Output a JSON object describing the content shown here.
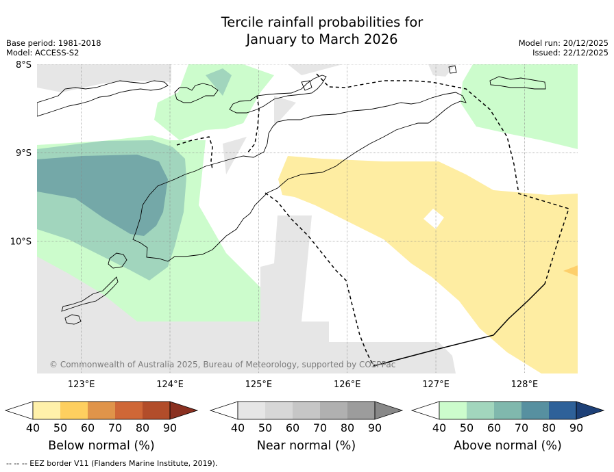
{
  "title_line1": "Tercile rainfall probabilities for",
  "title_line2": "January to March 2026",
  "base_period": "Base period: 1981-2018",
  "model": "Model: ACCESS-S2",
  "model_run": "Model run: 20/12/2025",
  "issued": "Issued: 22/12/2025",
  "copyright": "© Commonwealth of Australia 2025, Bureau of Meteorology, supported by COSPPac",
  "footnote": "--  --  -- EEZ border V11 (Flanders Marine Institute, 2019).",
  "colors": {
    "land_outline": "#000000",
    "grey": "#e6e6e6",
    "green_light": "#ccfccc",
    "green_mid": "#a1d5bd",
    "teal": "#74a8a8",
    "yellow": "#feeda2",
    "orange": "#fdcf6b",
    "gridline": "#888888"
  },
  "chart_data": {
    "type": "map",
    "title": "Tercile rainfall probabilities for January to March 2026",
    "lon_range": [
      122.5,
      128.6
    ],
    "lat_range": [
      -11.5,
      -8.0
    ],
    "x_ticks": [
      {
        "value": 123,
        "label": "123°E"
      },
      {
        "value": 124,
        "label": "124°E"
      },
      {
        "value": 125,
        "label": "125°E"
      },
      {
        "value": 126,
        "label": "126°E"
      },
      {
        "value": 127,
        "label": "127°E"
      },
      {
        "value": 128,
        "label": "128°E"
      }
    ],
    "y_ticks": [
      {
        "value": -8,
        "label": "8°S"
      },
      {
        "value": -9,
        "label": "9°S"
      },
      {
        "value": -10,
        "label": "10°S"
      }
    ],
    "regions": [
      {
        "category": "Near normal",
        "range": "40-50",
        "description": "grey areas in western and southern seas"
      },
      {
        "category": "Above normal",
        "range": "40-50",
        "description": "light green over western Timor, Flores Sea east, Savu Sea"
      },
      {
        "category": "Above normal",
        "range": "50-60",
        "description": "west Timor coast and Savu Sea"
      },
      {
        "category": "Above normal",
        "range": "60-70",
        "description": "Savu Sea around 122.5-124°E, 9-10°S"
      },
      {
        "category": "Below normal",
        "range": "40-50",
        "description": "Timor Sea south-east of Timor"
      },
      {
        "category": "Below normal",
        "range": "50-60",
        "description": "small area near 128.5°E, 10.3°S"
      }
    ],
    "colorbars": [
      {
        "title": "Below normal (%)",
        "ticks": [
          "40",
          "50",
          "60",
          "70",
          "80",
          "90"
        ],
        "colors": [
          "#fff1aa",
          "#fecf5f",
          "#e0944a",
          "#cf6737",
          "#b24d2a",
          "#8a3020"
        ]
      },
      {
        "title": "Near normal (%)",
        "ticks": [
          "40",
          "50",
          "60",
          "70",
          "80",
          "90"
        ],
        "colors": [
          "#e6e6e6",
          "#d7d7d7",
          "#c6c6c6",
          "#b0b0b0",
          "#9c9c9c",
          "#888888"
        ]
      },
      {
        "title": "Above normal (%)",
        "ticks": [
          "40",
          "50",
          "60",
          "70",
          "80",
          "90"
        ],
        "colors": [
          "#ccfccc",
          "#a2d6bd",
          "#80b8ad",
          "#5790a0",
          "#2e6199",
          "#1d4077"
        ]
      }
    ]
  }
}
